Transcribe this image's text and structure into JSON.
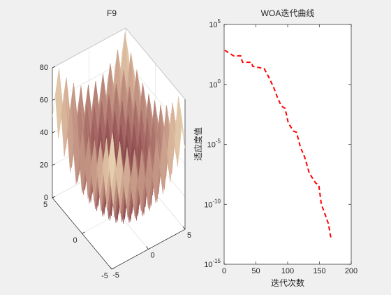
{
  "chart_data": [
    {
      "type": "surface",
      "title": "F9",
      "x": [
        -5,
        -4.5,
        -4,
        -3.5,
        -3,
        -2.5,
        -2,
        -1.5,
        -1,
        -0.5,
        0,
        0.5,
        1,
        1.5,
        2,
        2.5,
        3,
        3.5,
        4,
        4.5,
        5
      ],
      "y": [
        -5,
        -4.5,
        -4,
        -3.5,
        -3,
        -2.5,
        -2,
        -1.5,
        -1,
        -0.5,
        0,
        0.5,
        1,
        1.5,
        2,
        2.5,
        3,
        3.5,
        4,
        4.5,
        5
      ],
      "z": [
        [
          50,
          65.25,
          41,
          57.25,
          34,
          51.25,
          29,
          47.25,
          26,
          45.25,
          25,
          45.25,
          26,
          47.25,
          29,
          51.25,
          34,
          57.25,
          41,
          65.25,
          50
        ],
        [
          65.25,
          80.5,
          56.25,
          72.5,
          49.25,
          66.5,
          44.25,
          62.5,
          41.25,
          60.5,
          40.25,
          60.5,
          41.25,
          62.5,
          44.25,
          66.5,
          49.25,
          72.5,
          56.25,
          80.5,
          65.25
        ],
        [
          41,
          56.25,
          32,
          48.25,
          25,
          42.25,
          20,
          38.25,
          17,
          36.25,
          16,
          36.25,
          17,
          38.25,
          20,
          42.25,
          25,
          48.25,
          32,
          56.25,
          41
        ],
        [
          57.25,
          72.5,
          48.25,
          64.5,
          41.25,
          58.5,
          36.25,
          54.5,
          33.25,
          52.5,
          32.25,
          52.5,
          33.25,
          54.5,
          36.25,
          58.5,
          41.25,
          64.5,
          48.25,
          72.5,
          57.25
        ],
        [
          34,
          49.25,
          25,
          41.25,
          18,
          35.25,
          13,
          31.25,
          10,
          29.25,
          9,
          29.25,
          10,
          31.25,
          13,
          35.25,
          18,
          41.25,
          25,
          49.25,
          34
        ],
        [
          51.25,
          66.5,
          42.25,
          58.5,
          35.25,
          52.5,
          30.25,
          48.5,
          27.25,
          46.5,
          26.25,
          46.5,
          27.25,
          48.5,
          30.25,
          52.5,
          35.25,
          58.5,
          42.25,
          66.5,
          51.25
        ],
        [
          29,
          44.25,
          20,
          36.25,
          13,
          30.25,
          8,
          26.25,
          5,
          24.25,
          4,
          24.25,
          5,
          26.25,
          8,
          30.25,
          13,
          36.25,
          20,
          44.25,
          29
        ],
        [
          47.25,
          62.5,
          38.25,
          54.5,
          31.25,
          48.5,
          26.25,
          44.5,
          23.25,
          42.5,
          22.25,
          42.5,
          23.25,
          44.5,
          26.25,
          48.5,
          31.25,
          54.5,
          38.25,
          62.5,
          47.25
        ],
        [
          26,
          41.25,
          17,
          33.25,
          10,
          27.25,
          5,
          23.25,
          2,
          21.25,
          1,
          21.25,
          2,
          23.25,
          5,
          27.25,
          10,
          33.25,
          17,
          41.25,
          26
        ],
        [
          45.25,
          60.5,
          36.25,
          52.5,
          29.25,
          46.5,
          24.25,
          42.5,
          21.25,
          40.5,
          20.25,
          40.5,
          21.25,
          42.5,
          24.25,
          46.5,
          29.25,
          52.5,
          36.25,
          60.5,
          45.25
        ],
        [
          25,
          40.25,
          16,
          32.25,
          9,
          26.25,
          4,
          22.25,
          1,
          20.25,
          0,
          20.25,
          1,
          22.25,
          4,
          26.25,
          9,
          32.25,
          16,
          40.25,
          25
        ],
        [
          45.25,
          60.5,
          36.25,
          52.5,
          29.25,
          46.5,
          24.25,
          42.5,
          21.25,
          40.5,
          20.25,
          40.5,
          21.25,
          42.5,
          24.25,
          46.5,
          29.25,
          52.5,
          36.25,
          60.5,
          45.25
        ],
        [
          26,
          41.25,
          17,
          33.25,
          10,
          27.25,
          5,
          23.25,
          2,
          21.25,
          1,
          21.25,
          2,
          23.25,
          5,
          27.25,
          10,
          33.25,
          17,
          41.25,
          26
        ],
        [
          47.25,
          62.5,
          38.25,
          54.5,
          31.25,
          48.5,
          26.25,
          44.5,
          23.25,
          42.5,
          22.25,
          42.5,
          23.25,
          44.5,
          26.25,
          48.5,
          31.25,
          54.5,
          38.25,
          62.5,
          47.25
        ],
        [
          29,
          44.25,
          20,
          36.25,
          13,
          30.25,
          8,
          26.25,
          5,
          24.25,
          4,
          24.25,
          5,
          26.25,
          8,
          30.25,
          13,
          36.25,
          20,
          44.25,
          29
        ],
        [
          51.25,
          66.5,
          42.25,
          58.5,
          35.25,
          52.5,
          30.25,
          48.5,
          27.25,
          46.5,
          26.25,
          46.5,
          27.25,
          48.5,
          30.25,
          52.5,
          35.25,
          58.5,
          42.25,
          66.5,
          51.25
        ],
        [
          34,
          49.25,
          25,
          41.25,
          18,
          35.25,
          13,
          31.25,
          10,
          29.25,
          9,
          29.25,
          10,
          31.25,
          13,
          35.25,
          18,
          41.25,
          25,
          49.25,
          34
        ],
        [
          57.25,
          72.5,
          48.25,
          64.5,
          41.25,
          58.5,
          36.25,
          54.5,
          33.25,
          52.5,
          32.25,
          52.5,
          33.25,
          54.5,
          36.25,
          58.5,
          41.25,
          64.5,
          48.25,
          72.5,
          57.25
        ],
        [
          41,
          56.25,
          32,
          48.25,
          25,
          42.25,
          20,
          38.25,
          17,
          36.25,
          16,
          36.25,
          17,
          38.25,
          20,
          42.25,
          25,
          48.25,
          32,
          56.25,
          41
        ],
        [
          65.25,
          80.5,
          56.25,
          72.5,
          49.25,
          66.5,
          44.25,
          62.5,
          41.25,
          60.5,
          40.25,
          60.5,
          41.25,
          62.5,
          44.25,
          66.5,
          49.25,
          72.5,
          56.25,
          80.5,
          65.25
        ],
        [
          50,
          65.25,
          41,
          57.25,
          34,
          51.25,
          29,
          47.25,
          26,
          45.25,
          25,
          45.25,
          26,
          47.25,
          29,
          51.25,
          34,
          57.25,
          41,
          65.25,
          50
        ]
      ],
      "xlim": [
        -5,
        5
      ],
      "ylim": [
        -5,
        5
      ],
      "zlim": [
        0,
        80
      ],
      "xticks": [
        -5,
        0,
        5
      ],
      "yticks": [
        -5,
        0,
        5
      ],
      "zticks": [
        0,
        20,
        40,
        60,
        80
      ],
      "colormap": [
        "#3c0a1e",
        "#9c5a5a",
        "#d8b49a",
        "#f4f0c6"
      ],
      "grid": true
    },
    {
      "type": "line",
      "title": "WOA迭代曲线",
      "xlabel": "迭代次数",
      "ylabel": "适应度值",
      "x": [
        1,
        15,
        26,
        29,
        43,
        45,
        63,
        70,
        78,
        84,
        90,
        96,
        101,
        109,
        114,
        120,
        127,
        134,
        144,
        149,
        153,
        158,
        164,
        168
      ],
      "values": [
        700,
        240,
        240,
        70,
        70,
        32,
        21,
        4.3,
        0.56,
        0.08,
        0.016,
        0.01,
        0.0006,
        0.00013,
        0.0001,
        6e-06,
        8e-07,
        4e-08,
        6e-09,
        4e-09,
        1e-10,
        2e-11,
        2.5e-12,
        1.6e-13
      ],
      "color": "#ff0000",
      "line_style": "dashed",
      "log_y": true,
      "xlim": [
        0,
        200
      ],
      "ylim": [
        1e-15,
        100000
      ],
      "xticks": [
        0,
        50,
        100,
        150,
        200
      ],
      "yticks": [
        {
          "value": 1e-15,
          "label": "10^{-15}"
        },
        {
          "value": 1e-10,
          "label": "10^{-10}"
        },
        {
          "value": 1e-05,
          "label": "10^{-5}"
        },
        {
          "value": 1,
          "label": "10^{0}"
        },
        {
          "value": 100000,
          "label": "10^{5}"
        }
      ]
    }
  ]
}
